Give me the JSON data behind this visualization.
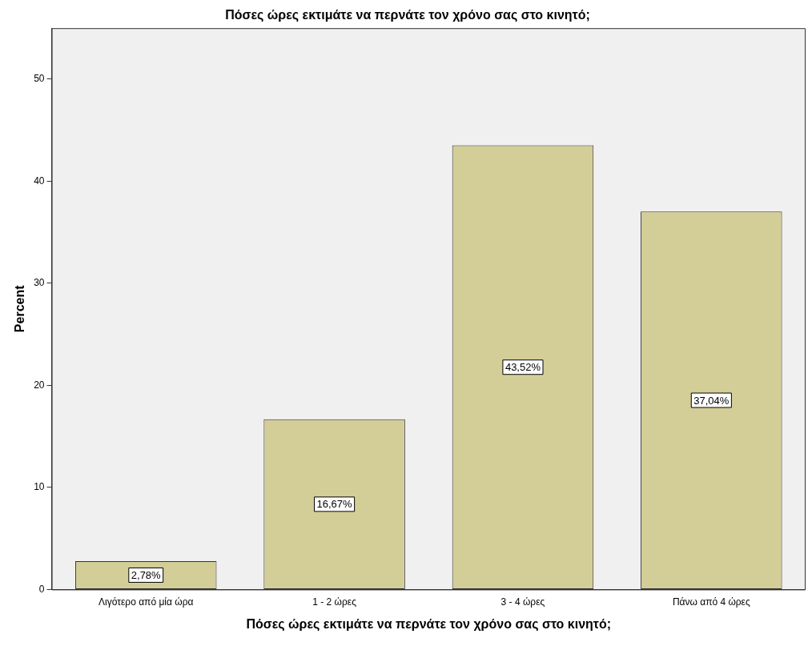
{
  "chart_data": {
    "type": "bar",
    "title": "Πόσες ώρες εκτιμάτε να περνάτε τον χρόνο σας στο κινητό;",
    "xlabel": "Πόσες ώρες εκτιμάτε να περνάτε τον χρόνο σας στο κινητό;",
    "ylabel": "Percent",
    "categories": [
      "Λιγότερο από μία ώρα",
      "1 - 2 ώρες",
      "3 - 4 ώρες",
      "Πάνω από 4 ώρες"
    ],
    "values": [
      2.78,
      16.67,
      43.52,
      37.04
    ],
    "color": "#d3ce97",
    "value_labels": [
      "2,78%",
      "16,67%",
      "43,52%",
      "37,04%"
    ],
    "ylim": [
      0,
      55
    ],
    "yticks": [
      0,
      10,
      20,
      30,
      40,
      50
    ],
    "grid": false,
    "legend": false
  }
}
